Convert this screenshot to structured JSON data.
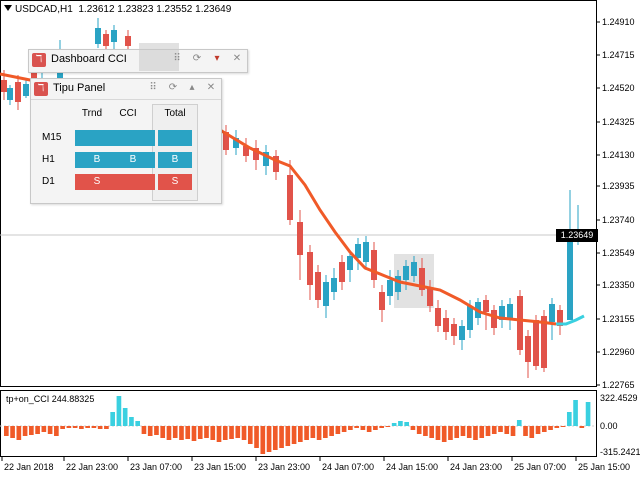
{
  "chart": {
    "symbol": "USDCAD,H1",
    "ohlc": "1.23612 1.23823 1.23552 1.23649",
    "current_price": "1.23649",
    "price_axis": [
      "1.24910",
      "1.24715",
      "1.24520",
      "1.24325",
      "1.24130",
      "1.23935",
      "1.23740",
      "1.23549",
      "1.23350",
      "1.23155",
      "1.22960",
      "1.22765"
    ],
    "time_axis": [
      "22 Jan 2018",
      "22 Jan 23:00",
      "23 Jan 07:00",
      "23 Jan 15:00",
      "23 Jan 23:00",
      "24 Jan 07:00",
      "24 Jan 15:00",
      "24 Jan 23:00",
      "25 Jan 07:00",
      "25 Jan 15:00"
    ],
    "colors": {
      "bull": "#2aa3c4",
      "bear": "#e1534a",
      "ma": "#f05a28",
      "ma_tail": "#3ad0e0"
    }
  },
  "indicator": {
    "label": "tp+on_CCI 244.88325",
    "axis": [
      "322.4529",
      "0.00",
      "-315.2421"
    ]
  },
  "dashboard": {
    "title": "Dashboard CCI",
    "buttons": {
      "grid": "⠿",
      "refresh": "⟳",
      "dropdown": "▾",
      "close": "✕"
    }
  },
  "tipu": {
    "title": "Tipu Panel",
    "buttons": {
      "grid": "⠿",
      "refresh": "⟳",
      "collapse": "▴",
      "close": "✕"
    },
    "headers": {
      "trend": "Trnd",
      "cci": "CCI",
      "total": "Total"
    },
    "rows": [
      {
        "tf": "M15",
        "trend": "",
        "cci": "",
        "total": "",
        "trend_state": "b",
        "cci_state": "b",
        "total_state": "b"
      },
      {
        "tf": "H1",
        "trend": "B",
        "cci": "B",
        "total": "B",
        "trend_state": "b",
        "cci_state": "b",
        "total_state": "b"
      },
      {
        "tf": "D1",
        "trend": "S",
        "cci": "",
        "total": "S",
        "trend_state": "s",
        "cci_state": "s",
        "total_state": "s"
      }
    ]
  }
}
